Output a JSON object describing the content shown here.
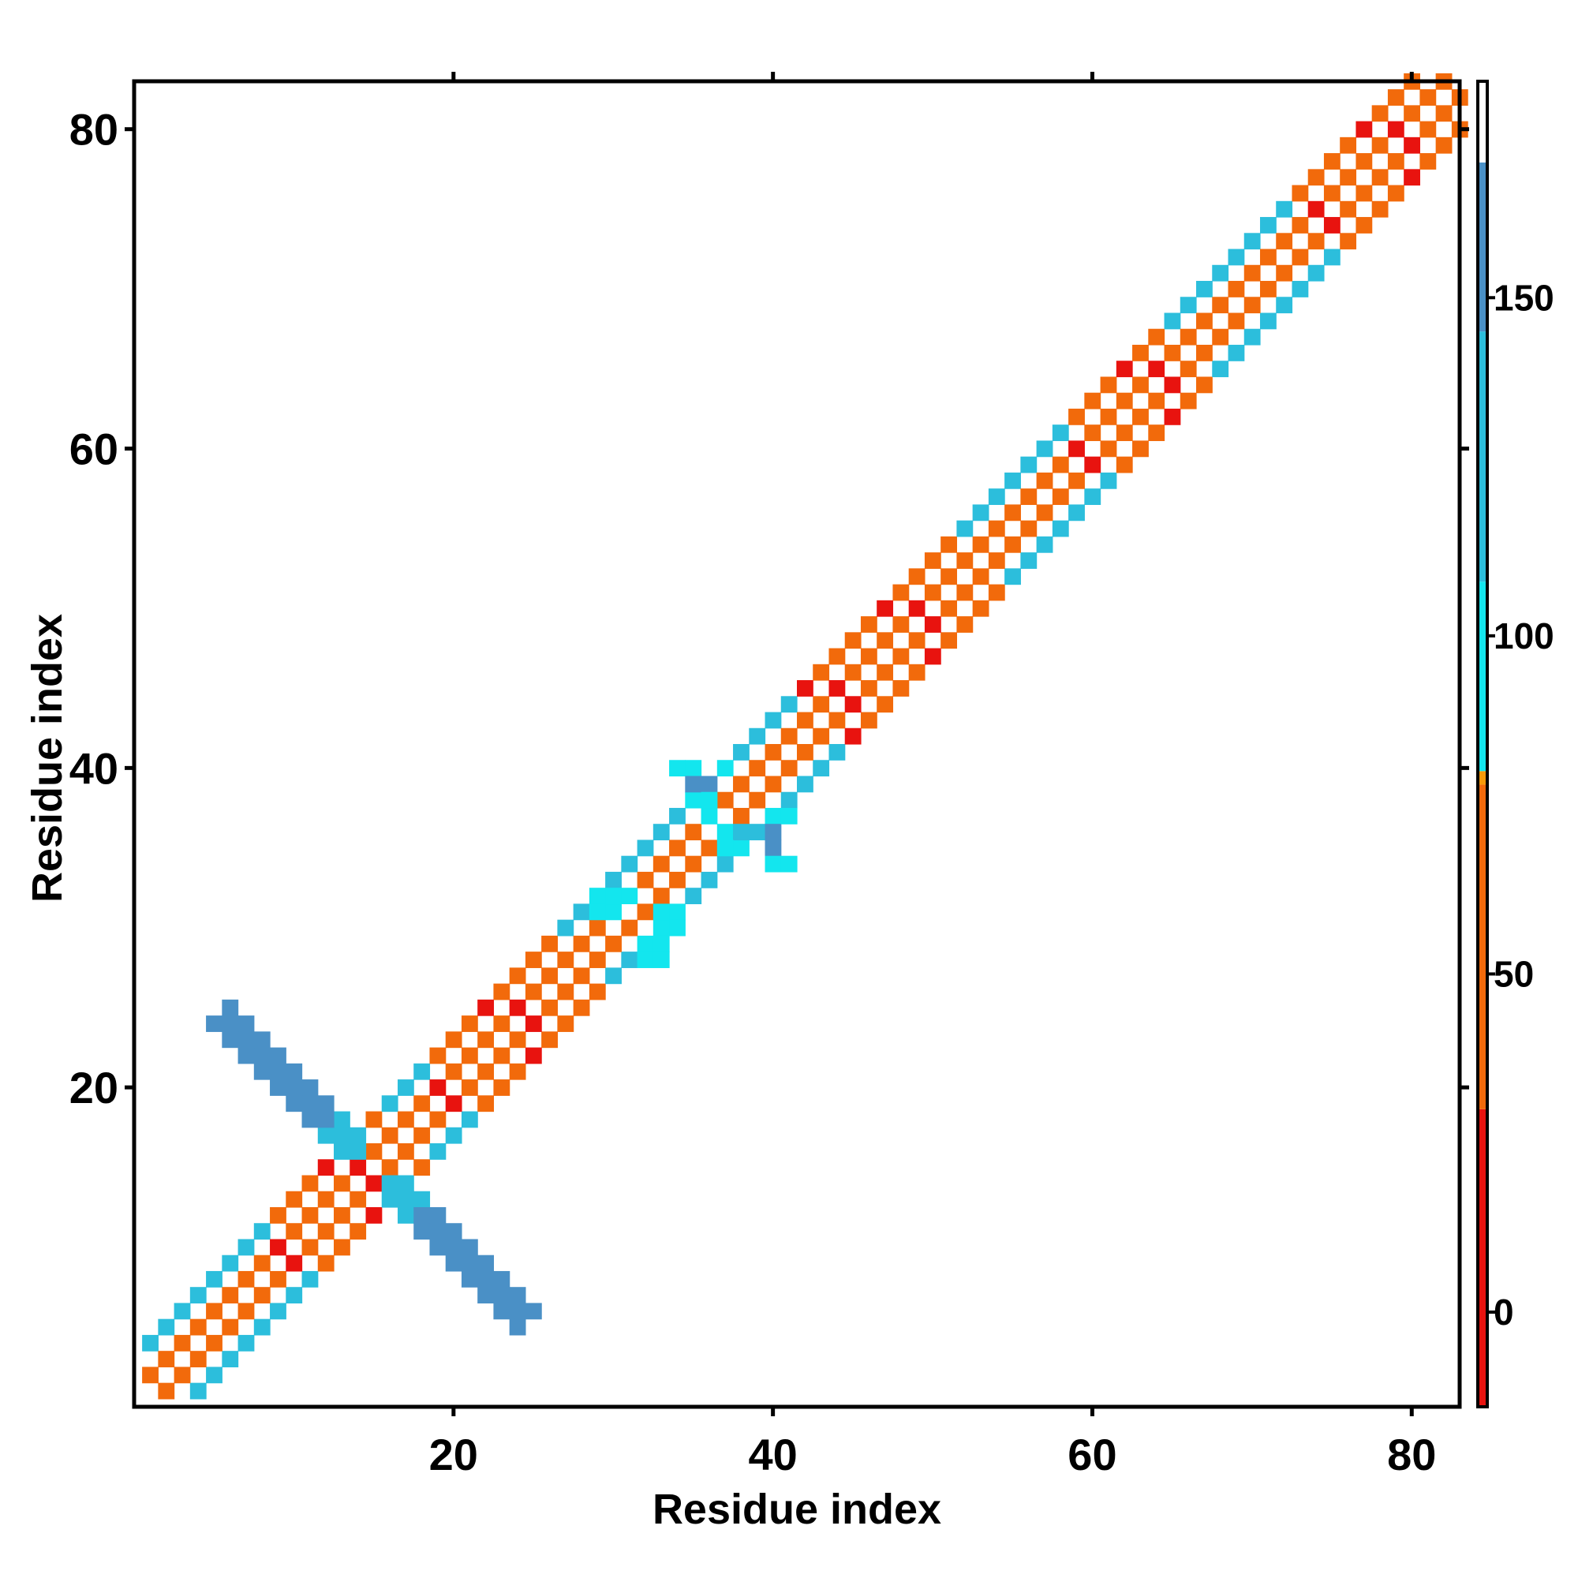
{
  "chart_data": {
    "type": "heatmap",
    "title": "",
    "xlabel": "Residue index",
    "ylabel": "Residue index",
    "xlim": [
      1,
      83
    ],
    "ylim": [
      1,
      83
    ],
    "x_ticks": [
      20,
      40,
      60,
      80
    ],
    "y_ticks": [
      20,
      40,
      60,
      80
    ],
    "x_tick_labels": [
      "20",
      "40",
      "60",
      "80"
    ],
    "y_tick_labels": [
      "20",
      "40",
      "60",
      "80"
    ],
    "colorbar": {
      "range": [
        -14,
        182
      ],
      "ticks": [
        0,
        50,
        100,
        150
      ],
      "tick_labels": [
        "0",
        "50",
        "100",
        "150"
      ],
      "segments": [
        {
          "from": -14,
          "to": 30,
          "color": "#e8130f"
        },
        {
          "from": 30,
          "to": 78,
          "color": "#f26a0b"
        },
        {
          "from": 78,
          "to": 80,
          "color": "#f79a08"
        },
        {
          "from": 80,
          "to": 108,
          "color": "#13e6ee"
        },
        {
          "from": 108,
          "to": 145,
          "color": "#2cbedc"
        },
        {
          "from": 145,
          "to": 170,
          "color": "#4a90c6"
        },
        {
          "from": 170,
          "to": 182,
          "color": "#ffffff"
        }
      ]
    },
    "value_colors": {
      "0": "#e8130f",
      "45": "#f26a0b",
      "65": "#f79a08",
      "95": "#13e6ee",
      "125": "#2cbedc",
      "160": "#4a90c6"
    },
    "diagonal_pattern": {
      "offset_1": 45,
      "offset_2": 45,
      "offset_3": 45,
      "helix_offset_2": 0,
      "helix_offset_3": 0,
      "strand_offset_1": 95,
      "strand_offset_2": 95,
      "strand_offset_3": 125
    },
    "regions": [
      {
        "residues": [
          1,
          8
        ],
        "type": "strand"
      },
      {
        "residues": [
          9,
          15
        ],
        "type": "helix"
      },
      {
        "residues": [
          15,
          18
        ],
        "type": "strand"
      },
      {
        "residues": [
          18,
          26
        ],
        "type": "helix"
      },
      {
        "residues": [
          27,
          41
        ],
        "type": "strand"
      },
      {
        "residues": [
          42,
          51
        ],
        "type": "helix"
      },
      {
        "residues": [
          52,
          58
        ],
        "type": "strand"
      },
      {
        "residues": [
          58,
          64
        ],
        "type": "helix"
      },
      {
        "residues": [
          65,
          72
        ],
        "type": "strand"
      },
      {
        "residues": [
          72,
          80
        ],
        "type": "helix"
      },
      {
        "residues": [
          80,
          83
        ],
        "type": "strand"
      }
    ],
    "antiparallel_sheet": {
      "center": 15,
      "width_range": [
        8,
        24
      ],
      "value": 160,
      "edge_value": 125
    },
    "extra_cells": [
      {
        "x": 34,
        "y": 40,
        "v": 95
      },
      {
        "x": 35,
        "y": 40,
        "v": 95
      },
      {
        "x": 35,
        "y": 39,
        "v": 160
      },
      {
        "x": 36,
        "y": 39,
        "v": 160
      },
      {
        "x": 37,
        "y": 40,
        "v": 95
      },
      {
        "x": 35,
        "y": 38,
        "v": 95
      },
      {
        "x": 36,
        "y": 38,
        "v": 95
      },
      {
        "x": 36,
        "y": 37,
        "v": 95
      },
      {
        "x": 37,
        "y": 36,
        "v": 95
      },
      {
        "x": 38,
        "y": 36,
        "v": 125
      },
      {
        "x": 39,
        "y": 36,
        "v": 125
      },
      {
        "x": 40,
        "y": 35,
        "v": 160
      },
      {
        "x": 40,
        "y": 36,
        "v": 160
      },
      {
        "x": 40,
        "y": 37,
        "v": 95
      },
      {
        "x": 41,
        "y": 37,
        "v": 95
      },
      {
        "x": 40,
        "y": 34,
        "v": 95
      },
      {
        "x": 41,
        "y": 34,
        "v": 95
      },
      {
        "x": 37,
        "y": 35,
        "v": 95
      },
      {
        "x": 38,
        "y": 35,
        "v": 95
      },
      {
        "x": 29,
        "y": 32,
        "v": 95
      },
      {
        "x": 30,
        "y": 32,
        "v": 95
      },
      {
        "x": 31,
        "y": 32,
        "v": 95
      },
      {
        "x": 32,
        "y": 32,
        "v": 95
      },
      {
        "x": 29,
        "y": 31,
        "v": 95
      },
      {
        "x": 30,
        "y": 31,
        "v": 95
      },
      {
        "x": 32,
        "y": 29,
        "v": 95
      },
      {
        "x": 33,
        "y": 29,
        "v": 95
      },
      {
        "x": 32,
        "y": 28,
        "v": 95
      },
      {
        "x": 33,
        "y": 28,
        "v": 95
      },
      {
        "x": 33,
        "y": 30,
        "v": 95
      },
      {
        "x": 34,
        "y": 30,
        "v": 95
      },
      {
        "x": 34,
        "y": 31,
        "v": 95
      },
      {
        "x": 33,
        "y": 31,
        "v": 95
      }
    ]
  }
}
